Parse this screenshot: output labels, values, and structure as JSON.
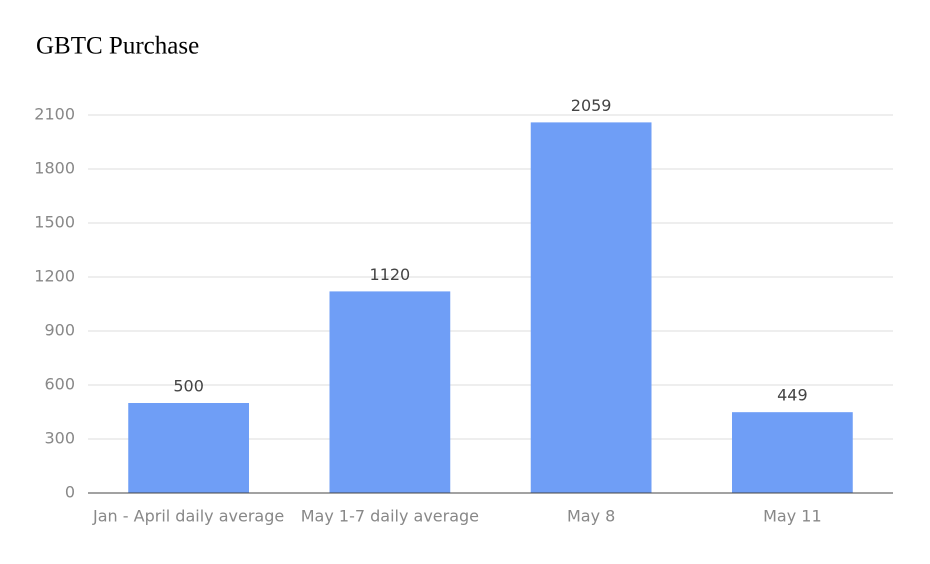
{
  "chart_data": {
    "type": "bar",
    "title": "GBTC Purchase",
    "categories": [
      "Jan - April daily average",
      "May 1-7 daily average",
      "May 8",
      "May 11"
    ],
    "values": [
      500,
      1120,
      2059,
      449
    ],
    "color": "#6f9ef6",
    "ylim": [
      0,
      2100
    ],
    "yticks": [
      0,
      300,
      600,
      900,
      1200,
      1500,
      1800,
      2100
    ],
    "grid": true
  }
}
